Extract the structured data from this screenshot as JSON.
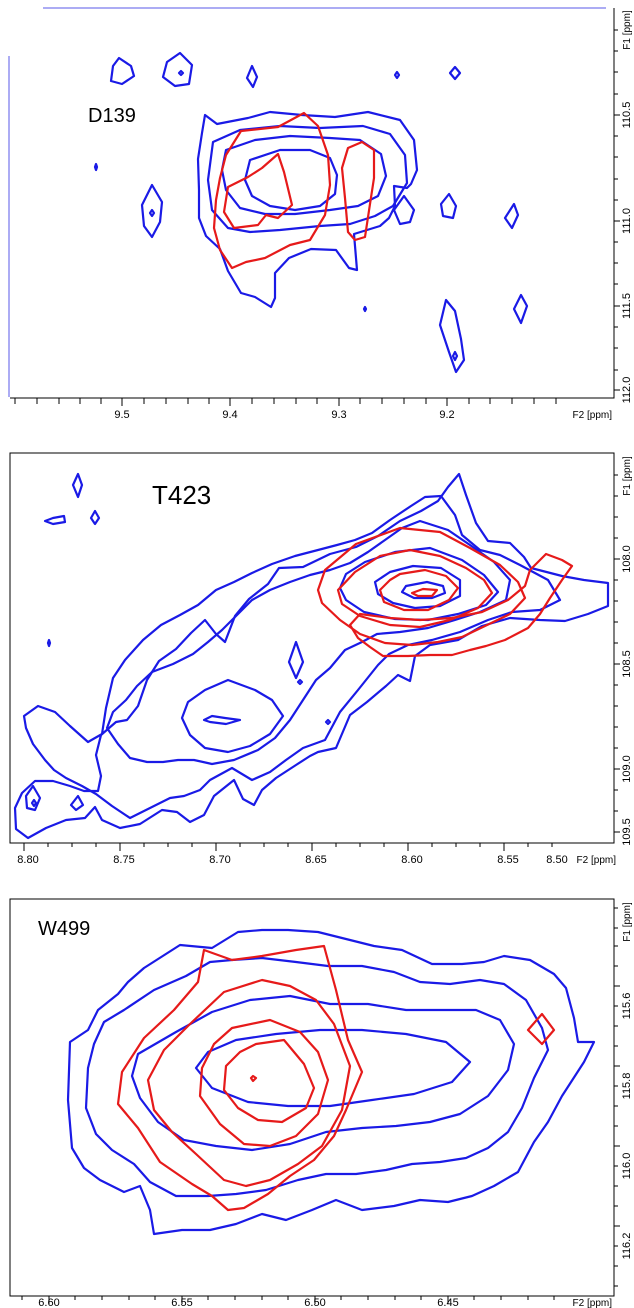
{
  "colors": {
    "blue": "#1a1ae6",
    "red": "#e61a1a"
  },
  "panels": [
    {
      "label": "D139",
      "x_unit_label": "F2 [ppm]",
      "y_unit_label": "F1 [ppm]",
      "x_ticks": [
        "9.5",
        "9.4",
        "9.3",
        "9.2"
      ],
      "y_ticks": [
        "110.5",
        "111.0",
        "111.5",
        "112.0"
      ]
    },
    {
      "label": "T423",
      "x_unit_label": "F2 [ppm]",
      "y_unit_label": "F1 [ppm]",
      "x_ticks": [
        "8.80",
        "8.75",
        "8.70",
        "8.65",
        "8.60",
        "8.55",
        "8.50"
      ],
      "y_ticks": [
        "108.0",
        "108.5",
        "109.0",
        "109.5"
      ]
    },
    {
      "label": "W499",
      "x_unit_label": "F2 [ppm]",
      "y_unit_label": "F1 [ppm]",
      "x_ticks": [
        "6.60",
        "6.55",
        "6.50",
        "6.45"
      ],
      "y_ticks": [
        "115.6",
        "115.8",
        "116.0",
        "116.2"
      ]
    }
  ],
  "chart_data": [
    {
      "type": "contour",
      "title": "D139",
      "xlabel": "F2 [ppm]",
      "ylabel": "F1 [ppm]",
      "x_axis_reversed": true,
      "xlim": [
        9.6,
        9.08
      ],
      "ylim": [
        110.0,
        112.2
      ],
      "series": [
        {
          "color": "blue",
          "peak_center": [
            9.35,
            111.0
          ],
          "contour_levels": 4
        },
        {
          "color": "red",
          "peak_center": [
            9.36,
            111.0
          ],
          "contour_levels": 2
        }
      ]
    },
    {
      "type": "contour",
      "title": "T423",
      "xlabel": "F2 [ppm]",
      "ylabel": "F1 [ppm]",
      "x_axis_reversed": true,
      "xlim": [
        8.81,
        8.47
      ],
      "ylim": [
        107.5,
        109.9
      ],
      "series": [
        {
          "color": "blue",
          "peak_centers": [
            [
              8.575,
              108.25
            ],
            [
              8.69,
              108.95
            ]
          ],
          "contour_levels": 5
        },
        {
          "color": "red",
          "peak_center": [
            8.58,
            108.25
          ],
          "contour_levels": 4
        }
      ]
    },
    {
      "type": "contour",
      "title": "W499",
      "xlabel": "F2 [ppm]",
      "ylabel": "F1 [ppm]",
      "x_axis_reversed": true,
      "xlim": [
        6.61,
        6.4
      ],
      "ylim": [
        115.4,
        116.37
      ],
      "series": [
        {
          "color": "blue",
          "peak_center": [
            6.5,
            115.87
          ],
          "contour_levels": 4
        },
        {
          "color": "red",
          "peak_center": [
            6.522,
            115.87
          ],
          "contour_levels": 4
        }
      ]
    }
  ]
}
